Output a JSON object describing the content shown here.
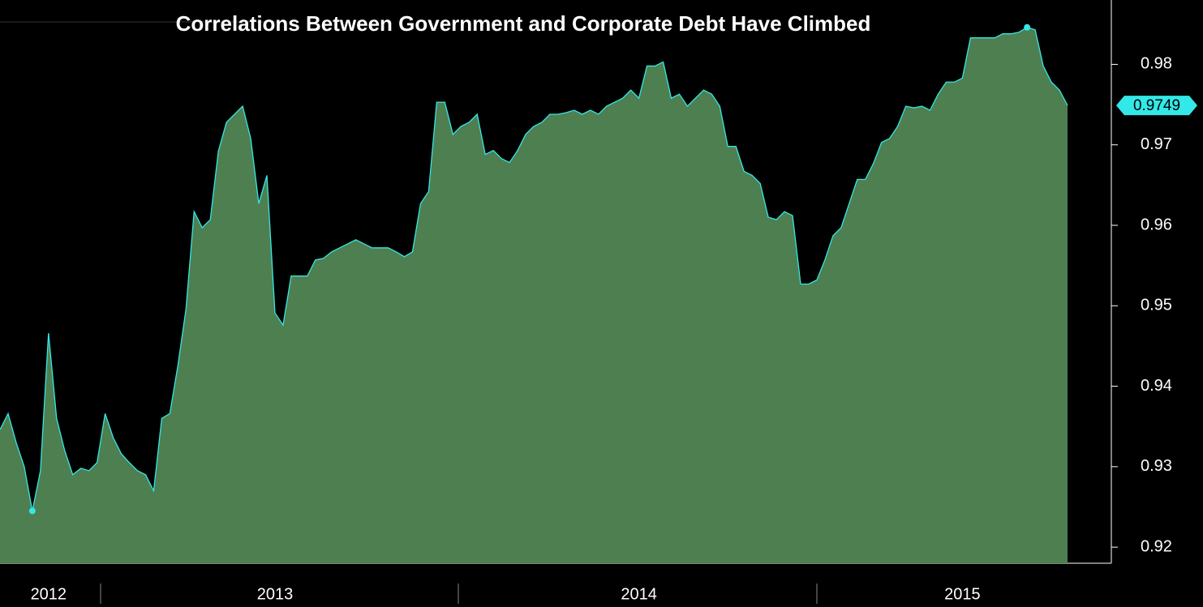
{
  "chart_data": {
    "type": "area",
    "title": "Correlations Between Government and Corporate Debt Have Climbed",
    "categories": [
      null,
      null,
      null,
      null,
      null,
      null,
      "2012",
      null,
      null,
      null,
      null,
      null,
      null,
      null,
      null,
      null,
      null,
      null,
      null,
      null,
      null,
      null,
      null,
      null,
      null,
      null,
      null,
      null,
      null,
      null,
      null,
      null,
      null,
      null,
      "2013",
      null,
      null,
      null,
      null,
      null,
      null,
      null,
      null,
      null,
      null,
      null,
      null,
      null,
      null,
      null,
      null,
      null,
      null,
      null,
      null,
      null,
      null,
      null,
      null,
      null,
      null,
      null,
      null,
      null,
      null,
      null,
      null,
      null,
      null,
      null,
      null,
      null,
      null,
      null,
      null,
      null,
      null,
      null,
      null,
      "2014",
      null,
      null,
      null,
      null,
      null,
      null,
      null,
      null,
      null,
      null,
      null,
      null,
      null,
      null,
      null,
      null,
      null,
      null,
      null,
      null,
      null,
      null,
      null,
      null,
      null,
      null,
      null,
      null,
      null,
      null,
      null,
      null,
      null,
      null,
      null,
      null,
      null,
      null,
      null,
      "2015",
      null,
      null,
      null,
      null,
      null,
      null,
      null,
      null,
      null,
      null,
      null,
      null,
      null
    ],
    "series": [
      {
        "name": "Correlation",
        "color": "#33e8e8",
        "fill": "#4e7f50",
        "values": [
          0.9346,
          0.9366,
          0.933,
          0.93,
          0.9245,
          0.9295,
          0.9466,
          0.936,
          0.932,
          0.929,
          0.9298,
          0.9295,
          0.9305,
          0.9366,
          0.9336,
          0.9316,
          0.9305,
          0.9295,
          0.929,
          0.927,
          0.936,
          0.9366,
          0.9426,
          0.9496,
          0.9617,
          0.9597,
          0.9607,
          0.9692,
          0.9728,
          0.9738,
          0.9748,
          0.9708,
          0.9627,
          0.9662,
          0.9491,
          0.9476,
          0.9537,
          0.9537,
          0.9537,
          0.9557,
          0.9559,
          0.9567,
          0.9572,
          0.9577,
          0.9582,
          0.9577,
          0.9572,
          0.9572,
          0.9572,
          0.9567,
          0.9561,
          0.9567,
          0.9627,
          0.9642,
          0.9753,
          0.9753,
          0.9713,
          0.9723,
          0.9728,
          0.9738,
          0.9688,
          0.9693,
          0.9683,
          0.9678,
          0.9693,
          0.9713,
          0.9723,
          0.9728,
          0.9738,
          0.9738,
          0.974,
          0.9743,
          0.9738,
          0.9743,
          0.9738,
          0.9748,
          0.9753,
          0.9758,
          0.9768,
          0.9758,
          0.9798,
          0.9798,
          0.9803,
          0.9758,
          0.9763,
          0.9748,
          0.9758,
          0.9768,
          0.9763,
          0.9748,
          0.9698,
          0.9698,
          0.9667,
          0.9662,
          0.9652,
          0.961,
          0.9607,
          0.9617,
          0.9612,
          0.9527,
          0.9527,
          0.9532,
          0.9557,
          0.9587,
          0.9597,
          0.9627,
          0.9657,
          0.9657,
          0.9677,
          0.9703,
          0.9708,
          0.9723,
          0.9748,
          0.9746,
          0.9748,
          0.9743,
          0.9763,
          0.9778,
          0.9778,
          0.9783,
          0.9833,
          0.9833,
          0.9833,
          0.9833,
          0.9838,
          0.9838,
          0.984,
          0.9846,
          0.9843,
          0.9798,
          0.9778,
          0.9768,
          0.9749
        ]
      }
    ],
    "current_label": "0.9749",
    "ylim": [
      0.918,
      0.988
    ],
    "yticks": [
      0.92,
      0.93,
      0.94,
      0.95,
      0.96,
      0.97,
      0.98
    ]
  }
}
